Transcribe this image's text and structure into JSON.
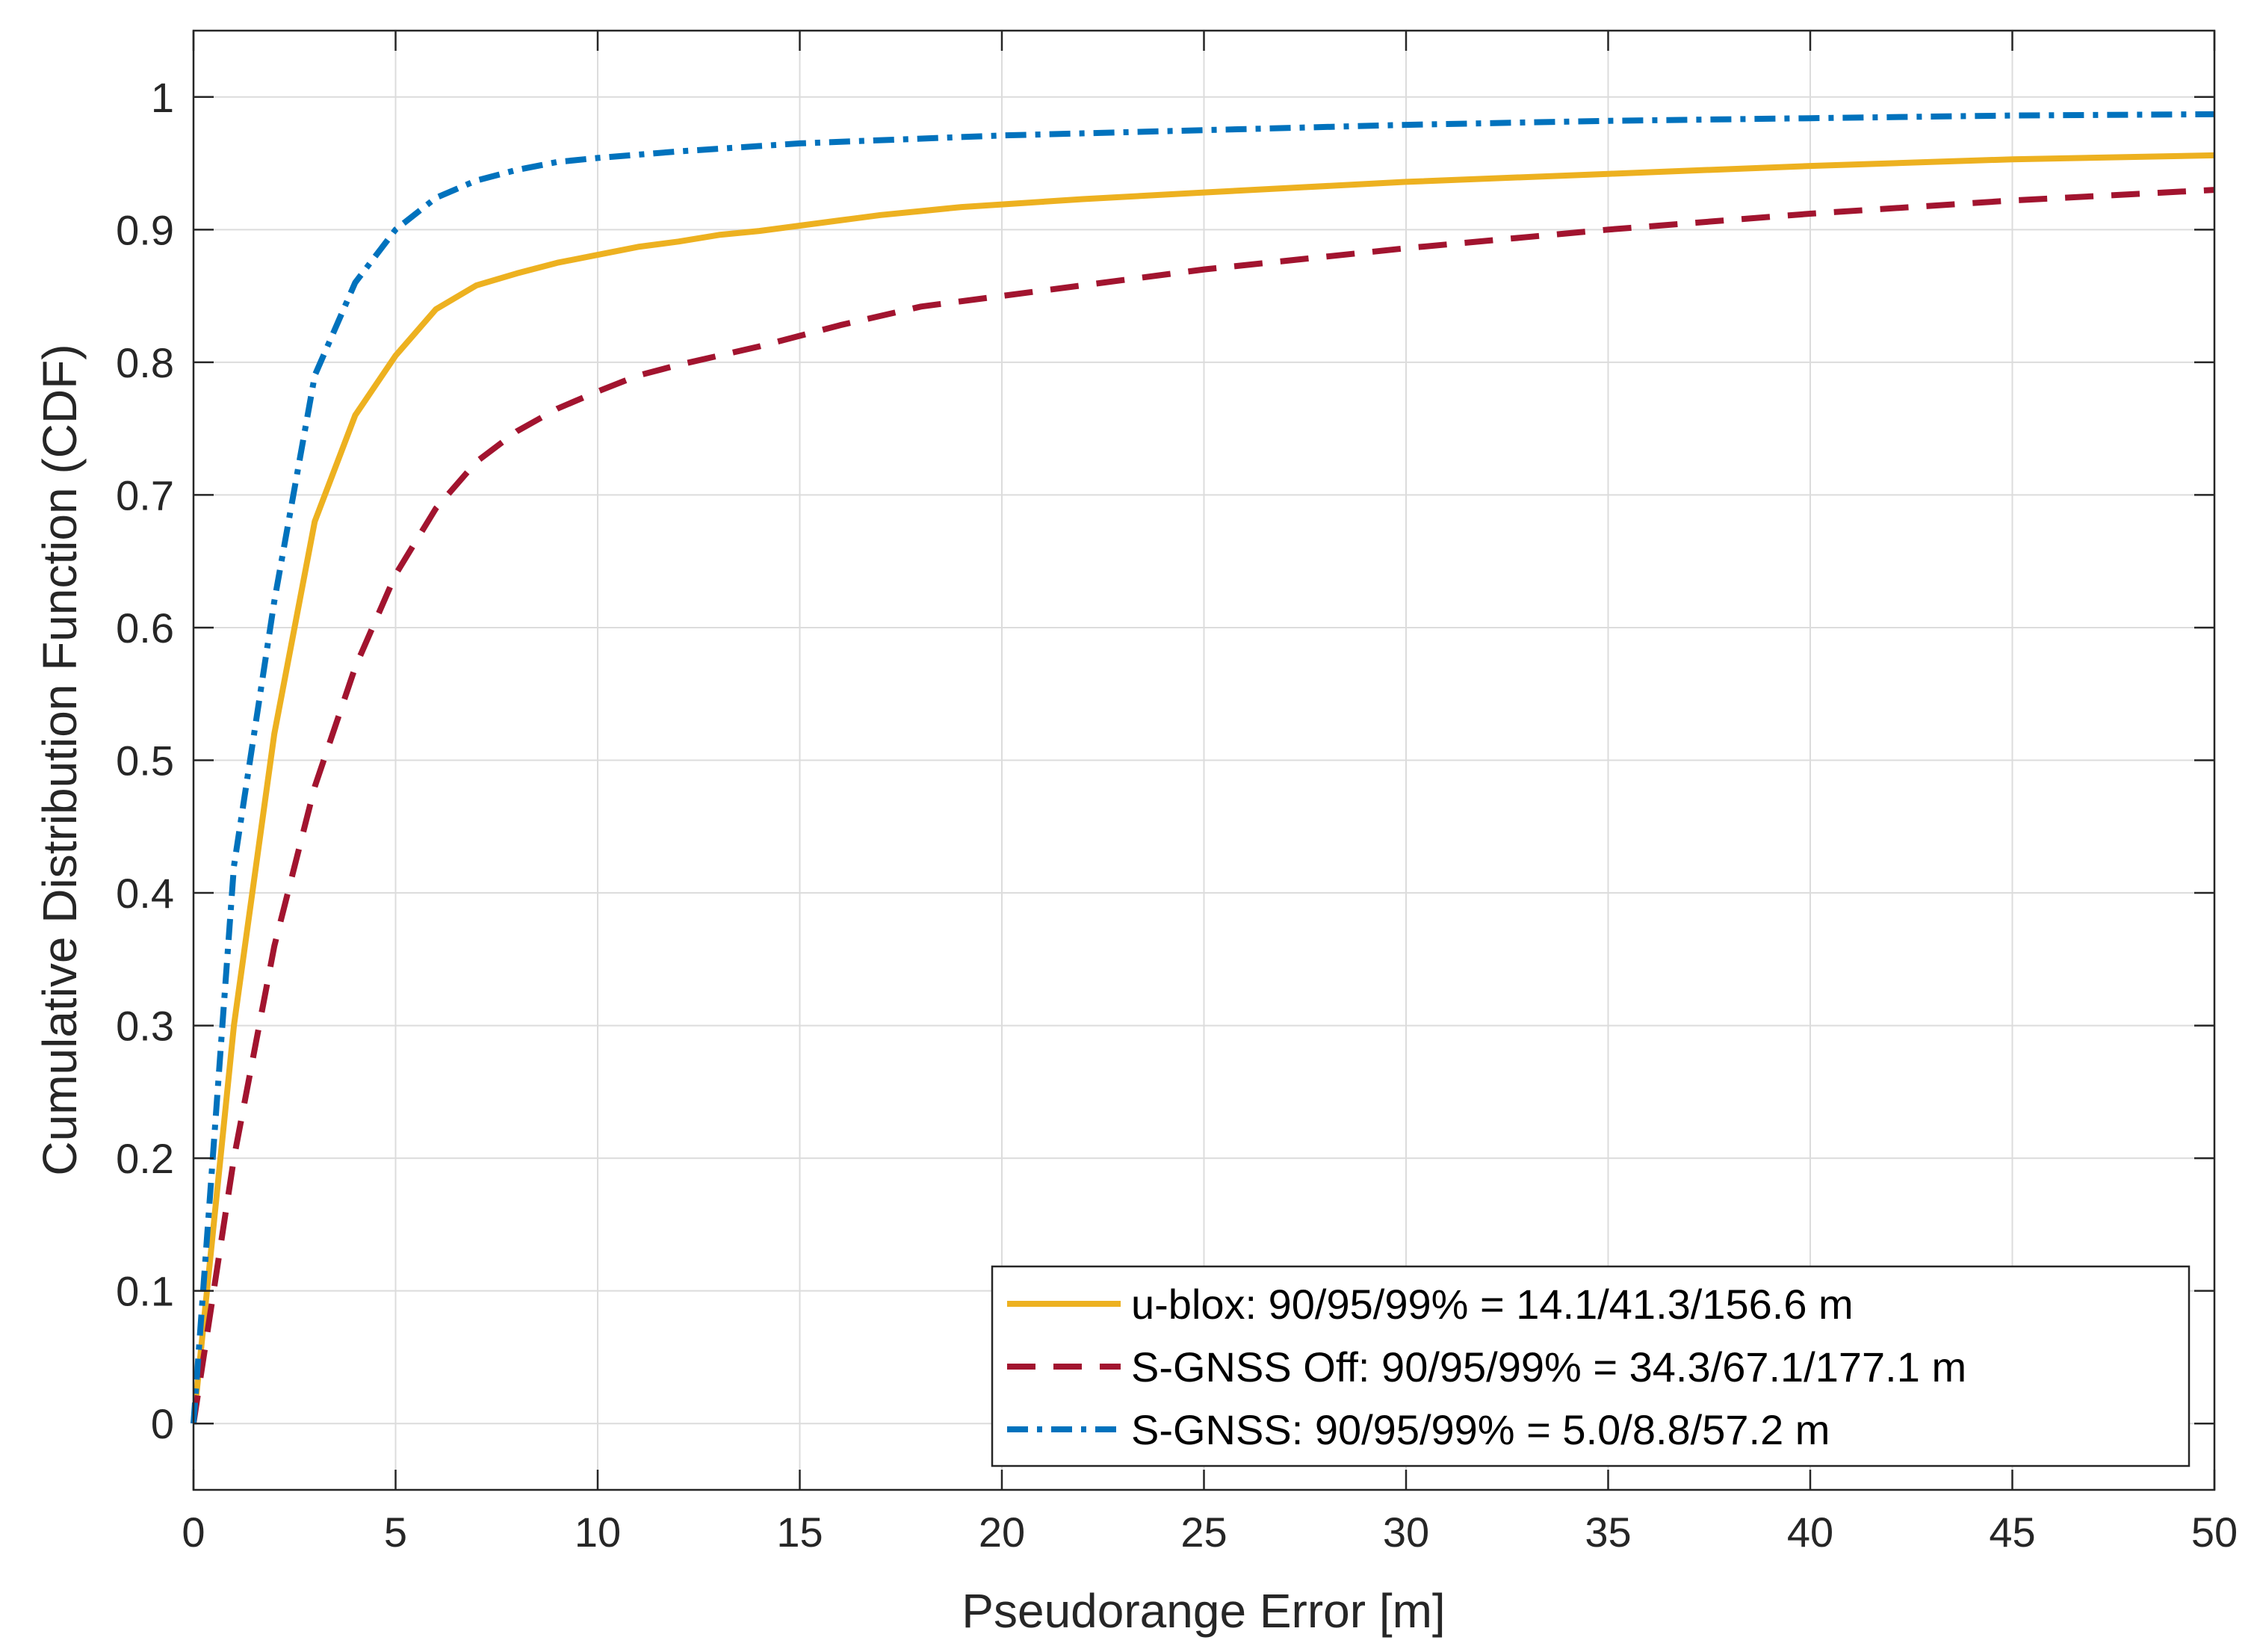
{
  "chart_data": {
    "type": "line",
    "title": "",
    "xlabel": "Pseudorange Error [m]",
    "ylabel": "Cumulative Distribution Function (CDF)",
    "xlim": [
      0,
      50
    ],
    "ylim": [
      -0.05,
      1.05
    ],
    "xticks": [
      "0",
      "5",
      "10",
      "15",
      "20",
      "25",
      "30",
      "35",
      "40",
      "45",
      "50"
    ],
    "yticks": [
      "0",
      "0.1",
      "0.2",
      "0.3",
      "0.4",
      "0.5",
      "0.6",
      "0.7",
      "0.8",
      "0.9",
      "1"
    ],
    "grid": true,
    "legend_position": "bottom-right",
    "series": [
      {
        "name": "u-blox: 90/95/99% = 14.1/41.3/156.6 m",
        "color": "#EDB120",
        "line_style": "solid",
        "x": [
          0,
          1,
          2,
          3,
          4,
          5,
          6,
          7,
          8,
          9,
          10,
          11,
          12,
          13,
          14,
          15,
          16,
          17,
          18,
          19,
          20,
          22,
          25,
          30,
          35,
          40,
          45,
          50
        ],
        "y": [
          0,
          0.3,
          0.52,
          0.68,
          0.76,
          0.805,
          0.84,
          0.858,
          0.867,
          0.875,
          0.881,
          0.887,
          0.891,
          0.896,
          0.899,
          0.903,
          0.907,
          0.911,
          0.914,
          0.917,
          0.919,
          0.923,
          0.928,
          0.936,
          0.942,
          0.948,
          0.953,
          0.956
        ]
      },
      {
        "name": "S-GNSS Off: 90/95/99% = 34.3/67.1/177.1 m",
        "color": "#A2142F",
        "line_style": "dashed",
        "x": [
          0,
          1,
          2,
          3,
          4,
          5,
          6,
          7,
          8,
          9,
          10,
          11,
          12,
          14,
          16,
          18,
          20,
          22,
          25,
          30,
          35,
          40,
          45,
          50
        ],
        "y": [
          0,
          0.2,
          0.36,
          0.48,
          0.57,
          0.64,
          0.69,
          0.725,
          0.748,
          0.765,
          0.778,
          0.79,
          0.798,
          0.812,
          0.828,
          0.842,
          0.85,
          0.858,
          0.87,
          0.886,
          0.9,
          0.912,
          0.922,
          0.93
        ]
      },
      {
        "name": "S-GNSS: 90/95/99% = 5.0/8.8/57.2 m",
        "color": "#0072BD",
        "line_style": "dashdot",
        "x": [
          0,
          1,
          2,
          3,
          4,
          5,
          6,
          7,
          8,
          9,
          10,
          12,
          15,
          20,
          25,
          30,
          35,
          40,
          45,
          50
        ],
        "y": [
          0,
          0.42,
          0.62,
          0.79,
          0.86,
          0.9,
          0.924,
          0.937,
          0.945,
          0.951,
          0.954,
          0.959,
          0.965,
          0.971,
          0.975,
          0.979,
          0.982,
          0.984,
          0.986,
          0.987
        ]
      }
    ]
  }
}
